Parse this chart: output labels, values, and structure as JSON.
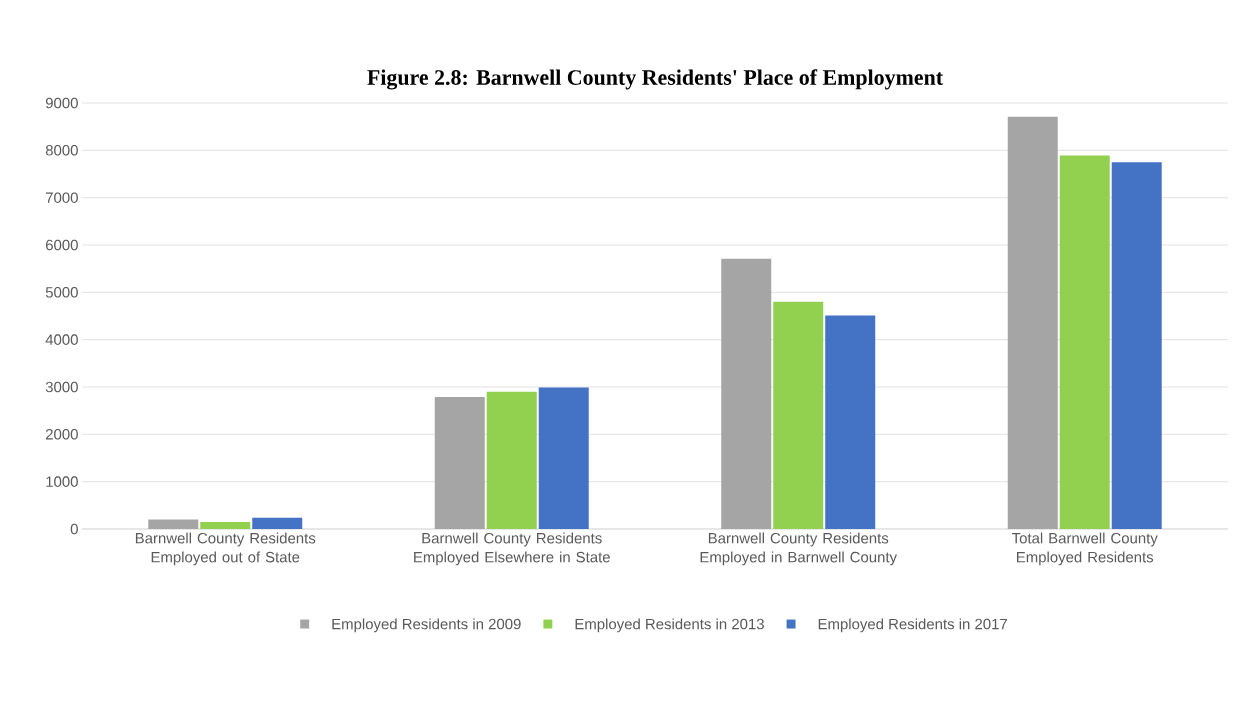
{
  "chart_data": {
    "type": "bar",
    "title": "Figure 2.8: Barnwell County Residents' Place of Employment",
    "categories": [
      "Barnwell County Residents Employed out of State",
      "Barnwell County Residents Employed Elsewhere in State",
      "Barnwell County Residents Employed in Barnwell County",
      "Total Barnwell County Employed Residents"
    ],
    "series": [
      {
        "name": "Employed Residents in 2009",
        "color": "#a5a5a5",
        "values": [
          200,
          2790,
          5710,
          8710
        ]
      },
      {
        "name": "Employed Residents in 2013",
        "color": "#92d050",
        "values": [
          150,
          2900,
          4800,
          7890
        ]
      },
      {
        "name": "Employed Residents in 2017",
        "color": "#4472c4",
        "values": [
          240,
          2990,
          4510,
          7750
        ]
      }
    ],
    "ylim": [
      0,
      9000
    ],
    "yticks": [
      0,
      1000,
      2000,
      3000,
      4000,
      5000,
      6000,
      7000,
      8000,
      9000
    ],
    "grid": "y",
    "legend": "bottom"
  }
}
